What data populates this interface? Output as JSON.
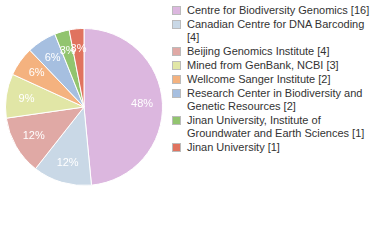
{
  "chart_data": {
    "type": "pie",
    "categories": [
      "Centre for Biodiversity Genomics [16]",
      "Canadian Centre for DNA Barcoding [4]",
      "Beijing Genomics Institute [4]",
      "Mined from GenBank, NCBI [3]",
      "Wellcome Sanger Institute [2]",
      "Research Center in Biodiversity and Genetic Resources [2]",
      "Jinan University, Institute of Groundwater and Earth Sciences [1]",
      "Jinan University [1]"
    ],
    "values": [
      48,
      12,
      12,
      9,
      6,
      6,
      3,
      3
    ],
    "value_labels": [
      "48%",
      "12%",
      "12%",
      "9%",
      "6%",
      "6%",
      "3%",
      "3%"
    ],
    "colors": [
      "#dcb7df",
      "#c9d8e6",
      "#e0a9a5",
      "#e1e6a6",
      "#f4b27f",
      "#a6bfe0",
      "#92c46f",
      "#e0735f"
    ],
    "data_labels": true,
    "legend": "right"
  }
}
